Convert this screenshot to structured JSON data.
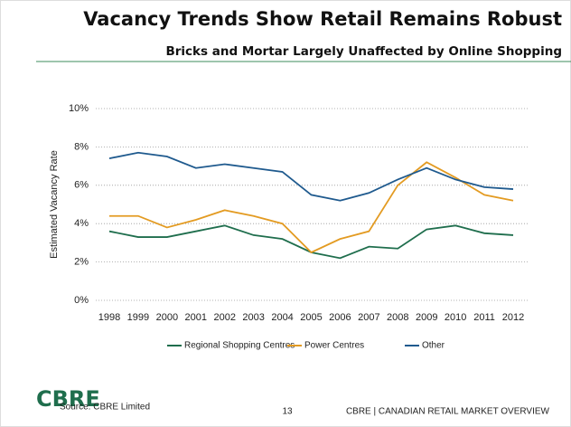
{
  "chart_data": {
    "type": "line",
    "title": "Vacancy Trends Show Retail Remains Robust",
    "subtitle": "Bricks and Mortar Largely Unaffected by Online Shopping",
    "y_label": "Estimated Vacancy Rate",
    "categories": [
      "1998",
      "1999",
      "2000",
      "2001",
      "2002",
      "2003",
      "2004",
      "2005",
      "2006",
      "2007",
      "2008",
      "2009",
      "2010",
      "2011",
      "2012"
    ],
    "series": [
      {
        "name": "Regional Shopping Centres",
        "color": "#1f6e4d",
        "values": [
          3.6,
          3.3,
          3.3,
          3.6,
          3.9,
          3.4,
          3.2,
          2.5,
          2.2,
          2.8,
          2.7,
          3.7,
          3.9,
          3.5,
          3.4
        ]
      },
      {
        "name": "Power Centres",
        "color": "#e39b22",
        "values": [
          4.4,
          4.4,
          3.8,
          4.2,
          4.7,
          4.4,
          4.0,
          2.5,
          3.2,
          3.6,
          6.0,
          7.2,
          6.4,
          5.5,
          5.2
        ]
      },
      {
        "name": "Other",
        "color": "#1f5a8e",
        "values": [
          7.4,
          7.7,
          7.5,
          6.9,
          7.1,
          6.9,
          6.7,
          5.5,
          5.2,
          5.6,
          6.3,
          6.9,
          6.3,
          5.9,
          5.8
        ]
      }
    ],
    "ylim": [
      0,
      10
    ],
    "yticks": [
      {
        "value": 0,
        "label": "0%"
      },
      {
        "value": 2,
        "label": "2%"
      },
      {
        "value": 4,
        "label": "4%"
      },
      {
        "value": 6,
        "label": "6%"
      },
      {
        "value": 8,
        "label": "8%"
      },
      {
        "value": 10,
        "label": "10%"
      }
    ],
    "grid": true,
    "legend": "bottom"
  },
  "footer": {
    "logo": "CBRE",
    "source": "Source: CBRE Limited",
    "page": "13",
    "right": "CBRE | CANADIAN RETAIL MARKET OVERVIEW"
  }
}
